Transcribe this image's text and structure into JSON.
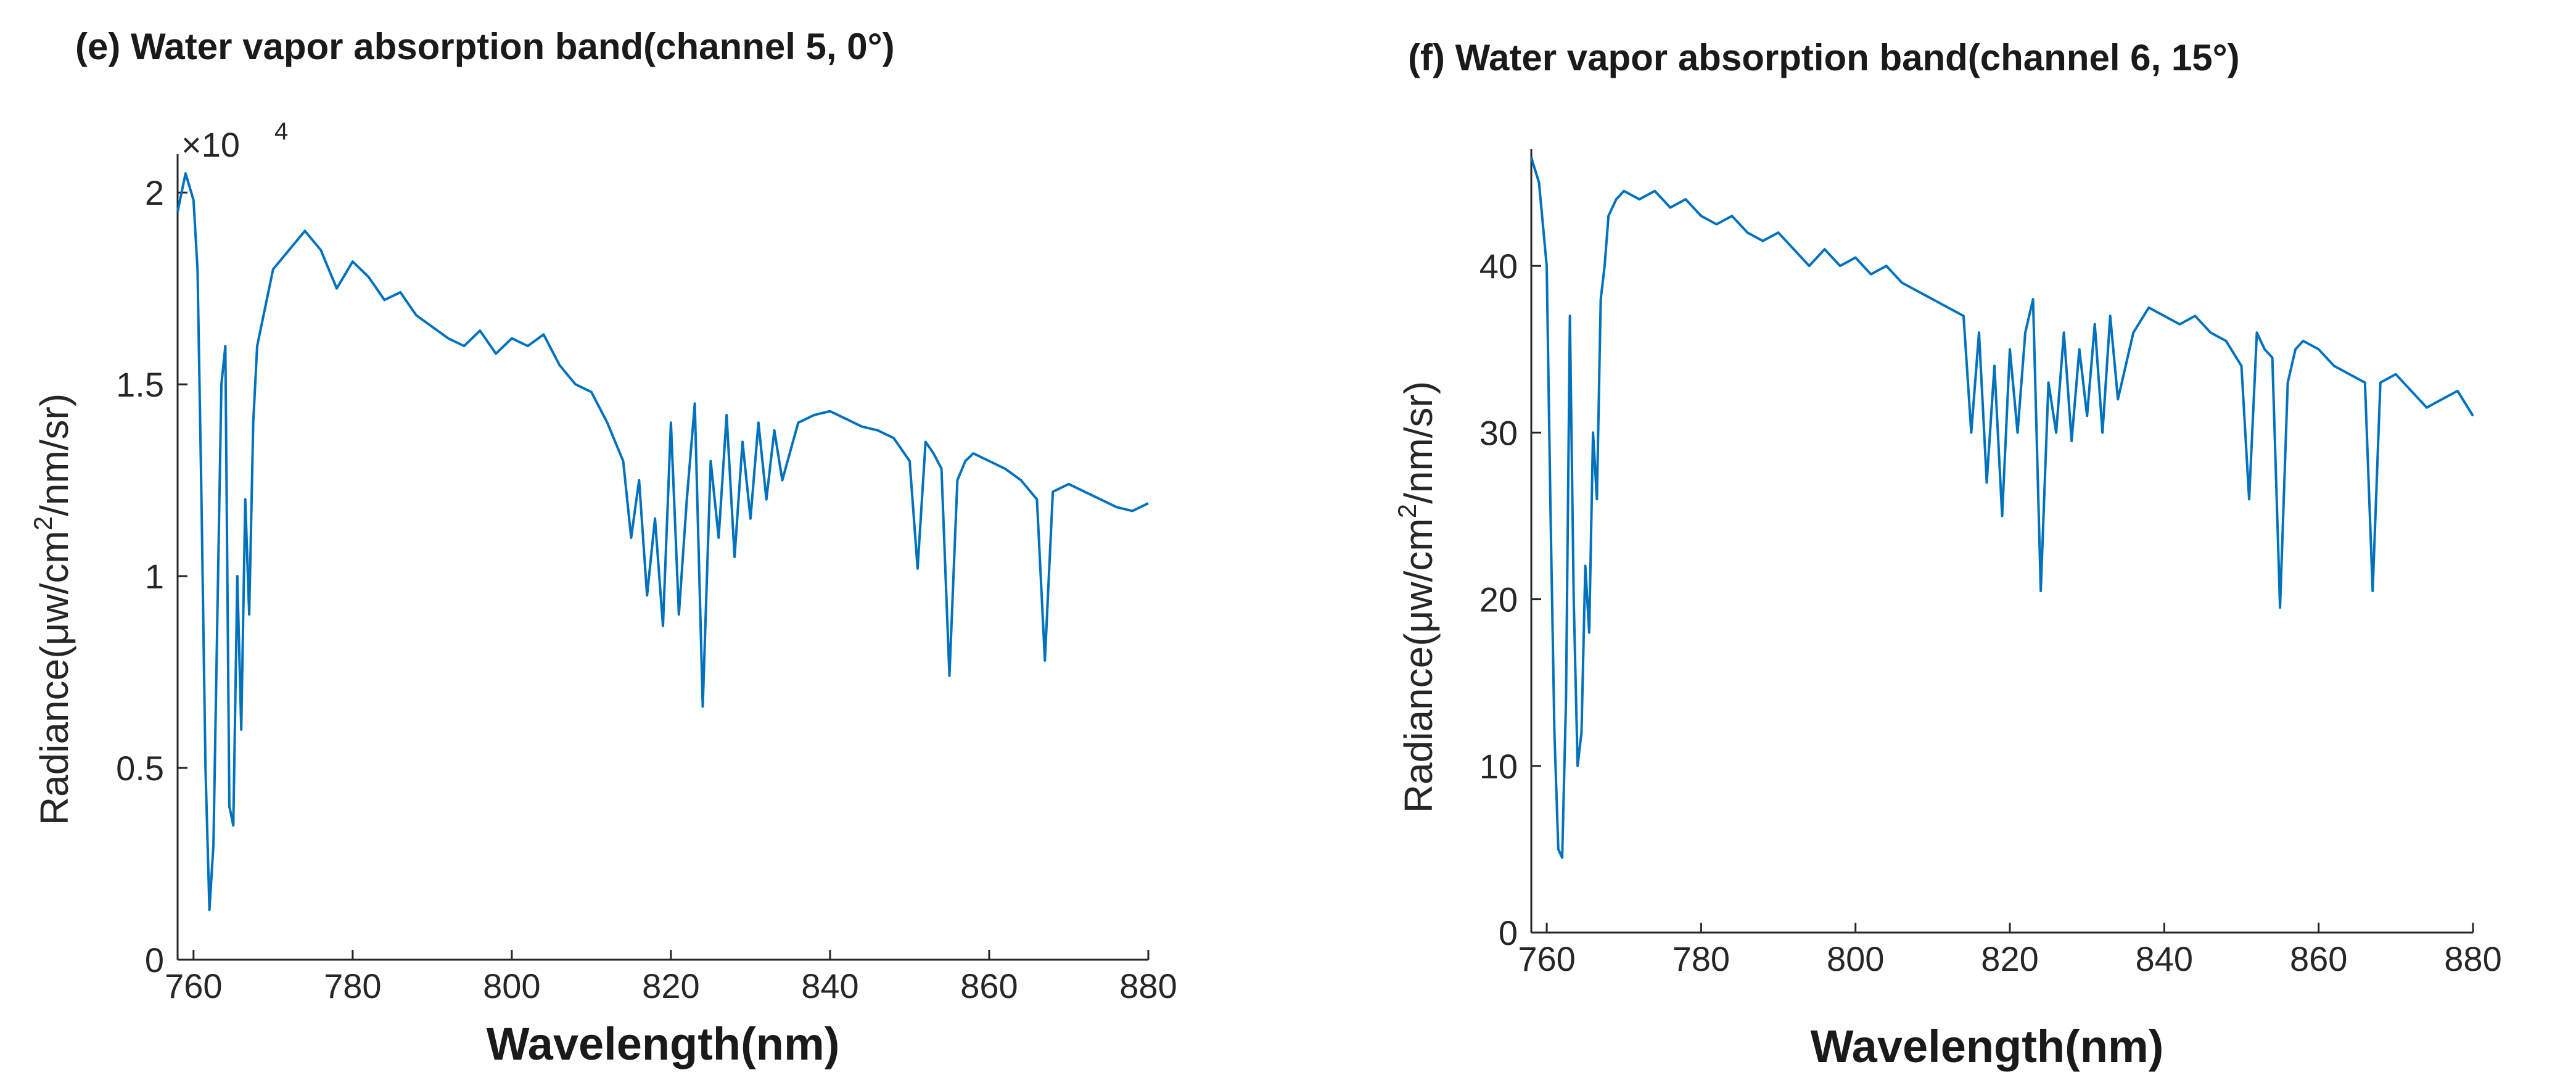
{
  "chart_data": [
    {
      "type": "line",
      "title": "(e) Water vapor absorption band(channel 5, 0°)",
      "xlabel": "Wavelength(nm)",
      "ylabel": {
        "main": "Radiance(μw/cm",
        "sup": "2",
        "tail": "/nm/sr)"
      },
      "multiplier": {
        "prefix": "×10",
        "exponent": "4"
      },
      "xlim": [
        758,
        880
      ],
      "ylim": [
        0,
        2.1
      ],
      "xticks": [
        760,
        780,
        800,
        820,
        840,
        860,
        880
      ],
      "yticks": [
        0,
        0.5,
        1,
        1.5,
        2
      ],
      "ytick_labels": [
        "0",
        "0.5",
        "1",
        "1.5",
        "2"
      ],
      "line_color": "#0072bd",
      "series": [
        {
          "name": "Radiance",
          "x": [
            758,
            759,
            760,
            760.5,
            761,
            761.5,
            762,
            762.5,
            763,
            763.5,
            764,
            764.5,
            765,
            765.5,
            766,
            766.5,
            767,
            767.5,
            768,
            769,
            770,
            772,
            774,
            776,
            778,
            780,
            782,
            784,
            786,
            788,
            790,
            792,
            794,
            796,
            798,
            800,
            802,
            804,
            806,
            808,
            810,
            812,
            814,
            815,
            816,
            817,
            818,
            819,
            820,
            821,
            822,
            823,
            824,
            825,
            826,
            827,
            828,
            829,
            830,
            831,
            832,
            833,
            834,
            836,
            838,
            840,
            842,
            844,
            846,
            848,
            850,
            851,
            852,
            853,
            854,
            855,
            856,
            857,
            858,
            860,
            862,
            864,
            866,
            867,
            868,
            870,
            872,
            874,
            876,
            878,
            880
          ],
          "y": [
            1.95,
            2.05,
            1.98,
            1.8,
            1.2,
            0.5,
            0.13,
            0.3,
            0.9,
            1.5,
            1.6,
            0.4,
            0.35,
            1.0,
            0.6,
            1.2,
            0.9,
            1.4,
            1.6,
            1.7,
            1.8,
            1.85,
            1.9,
            1.85,
            1.75,
            1.82,
            1.78,
            1.72,
            1.74,
            1.68,
            1.65,
            1.62,
            1.6,
            1.64,
            1.58,
            1.62,
            1.6,
            1.63,
            1.55,
            1.5,
            1.48,
            1.4,
            1.3,
            1.1,
            1.25,
            0.95,
            1.15,
            0.87,
            1.4,
            0.9,
            1.2,
            1.45,
            0.66,
            1.3,
            1.1,
            1.42,
            1.05,
            1.35,
            1.15,
            1.4,
            1.2,
            1.38,
            1.25,
            1.4,
            1.42,
            1.43,
            1.41,
            1.39,
            1.38,
            1.36,
            1.3,
            1.02,
            1.35,
            1.32,
            1.28,
            0.74,
            1.25,
            1.3,
            1.32,
            1.3,
            1.28,
            1.25,
            1.2,
            0.78,
            1.22,
            1.24,
            1.22,
            1.2,
            1.18,
            1.17,
            1.19
          ]
        }
      ]
    },
    {
      "type": "line",
      "title": "(f) Water vapor absorption band(channel 6, 15°)",
      "xlabel": "Wavelength(nm)",
      "ylabel": {
        "main": "Radiance(μw/cm",
        "sup": "2",
        "tail": "/nm/sr)"
      },
      "xlim": [
        758,
        880
      ],
      "ylim": [
        0,
        47
      ],
      "xticks": [
        760,
        780,
        800,
        820,
        840,
        860,
        880
      ],
      "yticks": [
        0,
        10,
        20,
        30,
        40
      ],
      "ytick_labels": [
        "0",
        "10",
        "20",
        "30",
        "40"
      ],
      "line_color": "#0072bd",
      "series": [
        {
          "name": "Radiance",
          "x": [
            758,
            759,
            760,
            760.5,
            761,
            761.5,
            762,
            762.5,
            763,
            763.5,
            764,
            764.5,
            765,
            765.5,
            766,
            766.5,
            767,
            767.5,
            768,
            769,
            770,
            772,
            774,
            776,
            778,
            780,
            782,
            784,
            786,
            788,
            790,
            792,
            794,
            796,
            798,
            800,
            802,
            804,
            806,
            808,
            810,
            812,
            814,
            815,
            816,
            817,
            818,
            819,
            820,
            821,
            822,
            823,
            824,
            825,
            826,
            827,
            828,
            829,
            830,
            831,
            832,
            833,
            834,
            836,
            838,
            840,
            842,
            844,
            846,
            848,
            850,
            851,
            852,
            853,
            854,
            855,
            856,
            857,
            858,
            860,
            862,
            864,
            866,
            867,
            868,
            870,
            872,
            874,
            876,
            878,
            880
          ],
          "y": [
            46.5,
            45.0,
            40.0,
            25.0,
            12.0,
            5.0,
            4.5,
            14.0,
            37.0,
            20.0,
            10.0,
            12.0,
            22.0,
            18.0,
            30.0,
            26.0,
            38.0,
            40.0,
            43.0,
            44.0,
            44.5,
            44.0,
            44.5,
            43.5,
            44.0,
            43.0,
            42.5,
            43.0,
            42.0,
            41.5,
            42.0,
            41.0,
            40.0,
            41.0,
            40.0,
            40.5,
            39.5,
            40.0,
            39.0,
            38.5,
            38.0,
            37.5,
            37.0,
            30.0,
            36.0,
            27.0,
            34.0,
            25.0,
            35.0,
            30.0,
            36.0,
            38.0,
            20.5,
            33.0,
            30.0,
            36.0,
            29.5,
            35.0,
            31.0,
            36.5,
            30.0,
            37.0,
            32.0,
            36.0,
            37.5,
            37.0,
            36.5,
            37.0,
            36.0,
            35.5,
            34.0,
            26.0,
            36.0,
            35.0,
            34.5,
            19.5,
            33.0,
            35.0,
            35.5,
            35.0,
            34.0,
            33.5,
            33.0,
            20.5,
            33.0,
            33.5,
            32.5,
            31.5,
            32.0,
            32.5,
            31.0
          ]
        }
      ]
    }
  ]
}
